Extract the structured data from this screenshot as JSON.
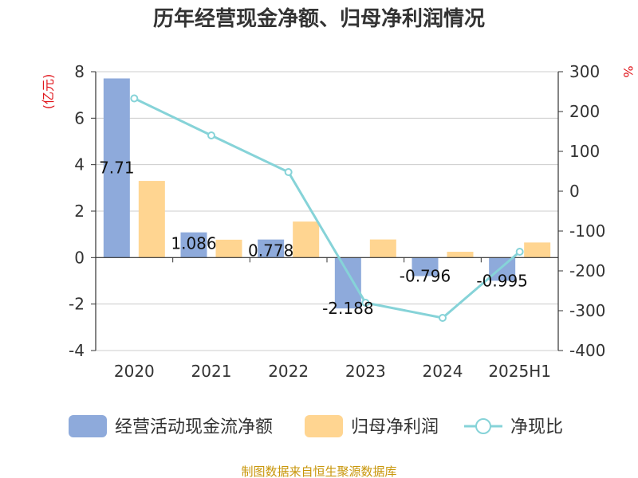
{
  "chart_data": {
    "type": "bar",
    "title": "历年经营现金净额、归母净利润情况",
    "categories": [
      "2020",
      "2021",
      "2022",
      "2023",
      "2024",
      "2025H1"
    ],
    "left_axis": {
      "label": "(亿元)",
      "ylim": [
        -4,
        8
      ],
      "ticks": [
        -4,
        -2,
        0,
        2,
        4,
        6,
        8
      ]
    },
    "right_axis": {
      "label": "%",
      "ylim": [
        -400,
        300
      ],
      "ticks": [
        -400,
        -300,
        -200,
        -100,
        0,
        100,
        200,
        300
      ]
    },
    "series": [
      {
        "name": "经营活动现金流净额",
        "kind": "bar",
        "axis": "left",
        "color": "#8eaadb",
        "values": [
          7.71,
          1.086,
          0.778,
          -2.188,
          -0.796,
          -0.995
        ],
        "labels": [
          "7.71",
          "1.086",
          "0.778",
          "-2.188",
          "-0.796",
          "-0.995"
        ]
      },
      {
        "name": "归母净利润",
        "kind": "bar",
        "axis": "left",
        "color": "#ffd591",
        "values": [
          3.3,
          0.77,
          1.55,
          0.78,
          0.25,
          0.65
        ]
      },
      {
        "name": "净现比",
        "kind": "line",
        "axis": "right",
        "color": "#86d3d8",
        "values": [
          233,
          140,
          48,
          -280,
          -318,
          -152
        ]
      }
    ],
    "grid": true,
    "legend": "bottom",
    "source": "制图数据来自恒生聚源数据库"
  }
}
